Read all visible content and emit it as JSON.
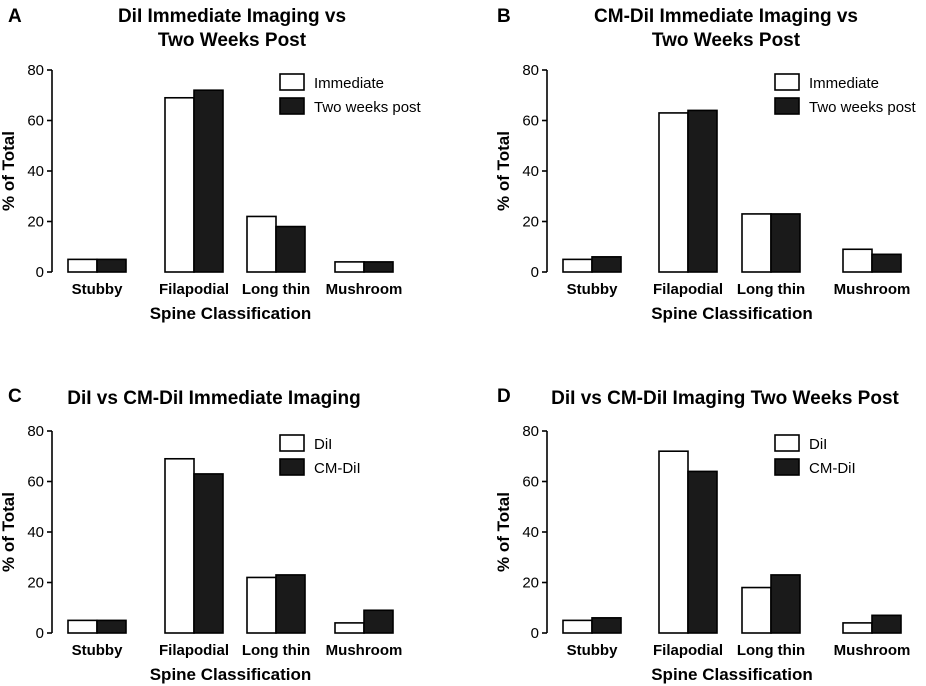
{
  "chart_data": [
    {
      "panel": "A",
      "type": "bar",
      "title": [
        "DiI Immediate Imaging vs",
        "Two Weeks Post"
      ],
      "xlabel": "Spine Classification",
      "ylabel": "% of Total",
      "ylim": [
        0,
        80
      ],
      "yticks": [
        0,
        20,
        40,
        60,
        80
      ],
      "categories": [
        "Stubby",
        "Filapodial",
        "Long thin",
        "Mushroom"
      ],
      "series": [
        {
          "name": "Immediate",
          "fill": "#ffffff",
          "values": [
            5,
            69,
            22,
            4
          ]
        },
        {
          "name": "Two weeks post",
          "fill": "#1a1a1a",
          "values": [
            5,
            72,
            18,
            4
          ]
        }
      ],
      "legend_position": "top-right"
    },
    {
      "panel": "B",
      "type": "bar",
      "title": [
        "CM-DiI Immediate Imaging vs",
        "Two Weeks Post"
      ],
      "xlabel": "Spine Classification",
      "ylabel": "% of Total",
      "ylim": [
        0,
        80
      ],
      "yticks": [
        0,
        20,
        40,
        60,
        80
      ],
      "categories": [
        "Stubby",
        "Filapodial",
        "Long thin",
        "Mushroom"
      ],
      "series": [
        {
          "name": "Immediate",
          "fill": "#ffffff",
          "values": [
            5,
            63,
            23,
            9
          ]
        },
        {
          "name": "Two weeks post",
          "fill": "#1a1a1a",
          "values": [
            6,
            64,
            23,
            7
          ]
        }
      ],
      "legend_position": "top-right"
    },
    {
      "panel": "C",
      "type": "bar",
      "title": [
        "DiI vs CM-DiI Immediate Imaging"
      ],
      "xlabel": "Spine Classification",
      "ylabel": "% of Total",
      "ylim": [
        0,
        80
      ],
      "yticks": [
        0,
        20,
        40,
        60,
        80
      ],
      "categories": [
        "Stubby",
        "Filapodial",
        "Long thin",
        "Mushroom"
      ],
      "series": [
        {
          "name": "DiI",
          "fill": "#ffffff",
          "values": [
            5,
            69,
            22,
            4
          ]
        },
        {
          "name": "CM-DiI",
          "fill": "#1a1a1a",
          "values": [
            5,
            63,
            23,
            9
          ]
        }
      ],
      "legend_position": "top-right"
    },
    {
      "panel": "D",
      "type": "bar",
      "title": [
        "DiI vs CM-DiI Imaging Two Weeks Post"
      ],
      "xlabel": "Spine Classification",
      "ylabel": "% of Total",
      "ylim": [
        0,
        80
      ],
      "yticks": [
        0,
        20,
        40,
        60,
        80
      ],
      "categories": [
        "Stubby",
        "Filapodial",
        "Long thin",
        "Mushroom"
      ],
      "series": [
        {
          "name": "DiI",
          "fill": "#ffffff",
          "values": [
            5,
            72,
            18,
            4
          ]
        },
        {
          "name": "CM-DiI",
          "fill": "#1a1a1a",
          "values": [
            6,
            64,
            23,
            7
          ]
        }
      ],
      "legend_position": "top-right"
    }
  ]
}
